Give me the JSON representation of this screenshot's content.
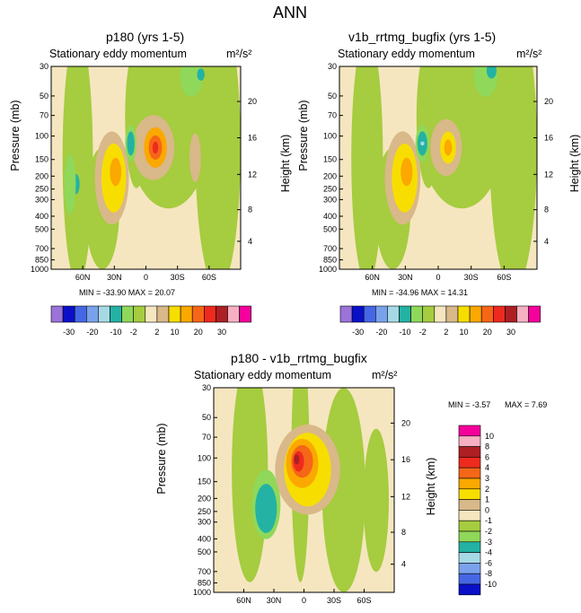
{
  "main_title": "ANN",
  "colors": {
    "palette": [
      "#9b73d9",
      "#0a10c8",
      "#4667e5",
      "#7aa2ec",
      "#a6d9e6",
      "#23b2a4",
      "#8fd85a",
      "#a6cc3f",
      "#f5e6c0",
      "#d9b889",
      "#f7de00",
      "#fba800",
      "#f66617",
      "#ee2a1f",
      "#ad1f23",
      "#f7b0c1",
      "#f5009c"
    ]
  },
  "chart_data": [
    {
      "type": "heatmap",
      "title": "p180 (yrs 1-5)",
      "subtitle": "Stationary eddy momentum",
      "units": "m²/s²",
      "ylabel": "Pressure (mb)",
      "ylabel_right": "Height (km)",
      "yticks": [
        "30",
        "50",
        "70",
        "100",
        "150",
        "200",
        "250",
        "300",
        "400",
        "500",
        "700",
        "850",
        "1000"
      ],
      "yticks_right": [
        "20",
        "16",
        "12",
        "8",
        "4"
      ],
      "xticks": [
        "60N",
        "30N",
        "0",
        "30S",
        "60S"
      ],
      "stats": "MIN = -33.90  MAX =  20.07",
      "cb_labels": [
        "-30",
        "-20",
        "-10",
        "-2",
        "2",
        "10",
        "20",
        "30"
      ],
      "min": -33.9,
      "max": 20.07
    },
    {
      "type": "heatmap",
      "title": "v1b_rrtmg_bugfix (yrs 1-5)",
      "subtitle": "Stationary eddy momentum",
      "units": "m²/s²",
      "ylabel": "Pressure (mb)",
      "ylabel_right": "Height (km)",
      "yticks": [
        "30",
        "50",
        "70",
        "100",
        "150",
        "200",
        "250",
        "300",
        "400",
        "500",
        "700",
        "850",
        "1000"
      ],
      "yticks_right": [
        "20",
        "16",
        "12",
        "8",
        "4"
      ],
      "xticks": [
        "60N",
        "30N",
        "0",
        "30S",
        "60S"
      ],
      "stats": "MIN = -34.96  MAX =  14.31",
      "cb_labels": [
        "-30",
        "-20",
        "-10",
        "-2",
        "2",
        "10",
        "20",
        "30"
      ],
      "min": -34.96,
      "max": 14.31
    },
    {
      "type": "heatmap",
      "title": "p180 - v1b_rrtmg_bugfix",
      "subtitle": "Stationary eddy momentum",
      "units": "m²/s²",
      "ylabel": "Pressure (mb)",
      "ylabel_right": "Height (km)",
      "yticks": [
        "30",
        "50",
        "70",
        "100",
        "150",
        "200",
        "250",
        "300",
        "400",
        "500",
        "700",
        "850",
        "1000"
      ],
      "yticks_right": [
        "20",
        "16",
        "12",
        "8",
        "4"
      ],
      "xticks": [
        "60N",
        "30N",
        "0",
        "30S",
        "60S"
      ],
      "stats_min": "MIN =  -3.57",
      "stats_max": "MAX =   7.69",
      "cb_labels": [
        "10",
        "8",
        "6",
        "4",
        "3",
        "2",
        "1",
        "0",
        "-1",
        "-2",
        "-3",
        "-4",
        "-6",
        "-8",
        "-10"
      ],
      "min": -3.57,
      "max": 7.69
    }
  ]
}
